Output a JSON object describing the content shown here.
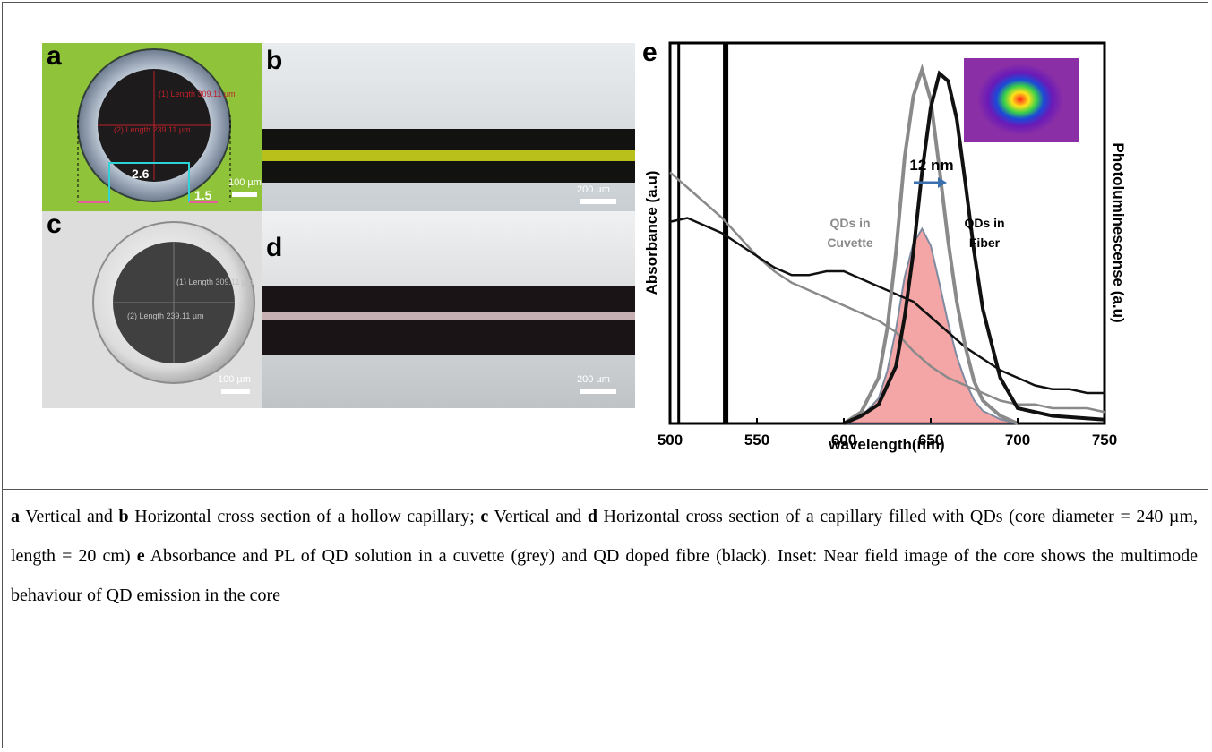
{
  "panels": {
    "a": {
      "label": "a",
      "scale": "100 µm",
      "dim_core": "2.6",
      "dim_wall": "1.5",
      "meas1": "(1) Length 309.11 µm",
      "meas2": "(2) Length 239.11 µm"
    },
    "b": {
      "label": "b",
      "scale": "200 µm"
    },
    "c": {
      "label": "c",
      "scale": "100 µm",
      "meas1": "(1) Length 309.11 µm",
      "meas2": "(2) Length 239.11 µm"
    },
    "d": {
      "label": "d",
      "scale": "200 µm"
    },
    "e": {
      "label": "e"
    }
  },
  "colors": {
    "panel_a_bg": "#8fc33a",
    "fiber_yellow": "#d7df1e",
    "pl_fill": "#f08080",
    "grey_curve": "#8a8a8a"
  },
  "chart_data": {
    "type": "line",
    "xlabel": "wavelength(nm)",
    "ylabel_left": "Absorbance (a.u)",
    "ylabel_right": "Photoluminescense (a.u)",
    "xlim": [
      500,
      750
    ],
    "xticks": [
      500,
      550,
      600,
      650,
      700,
      750
    ],
    "annotation_shift": "12 nm",
    "series": [
      {
        "name": "QDs in Cuvette",
        "color": "#8a8a8a",
        "kind": "absorbance",
        "x": [
          500,
          510,
          520,
          530,
          540,
          550,
          560,
          570,
          580,
          590,
          600,
          610,
          620,
          630,
          640,
          650,
          660,
          670,
          680,
          690,
          700,
          710,
          720,
          730,
          740,
          750
        ],
        "y": [
          0.66,
          0.62,
          0.58,
          0.54,
          0.49,
          0.44,
          0.4,
          0.37,
          0.35,
          0.33,
          0.31,
          0.29,
          0.27,
          0.24,
          0.19,
          0.15,
          0.12,
          0.1,
          0.08,
          0.06,
          0.05,
          0.05,
          0.04,
          0.04,
          0.04,
          0.03
        ]
      },
      {
        "name": "QDs in Fiber",
        "color": "#111111",
        "kind": "absorbance",
        "x": [
          500,
          510,
          520,
          530,
          540,
          550,
          560,
          570,
          580,
          590,
          600,
          610,
          620,
          630,
          640,
          650,
          660,
          670,
          680,
          690,
          700,
          710,
          720,
          730,
          740,
          750
        ],
        "y": [
          0.53,
          0.54,
          0.52,
          0.5,
          0.47,
          0.44,
          0.41,
          0.39,
          0.39,
          0.4,
          0.4,
          0.38,
          0.36,
          0.34,
          0.32,
          0.28,
          0.24,
          0.2,
          0.17,
          0.14,
          0.12,
          0.1,
          0.09,
          0.09,
          0.08,
          0.08
        ]
      },
      {
        "name": "QDs in Cuvette",
        "color": "#8a8a8a",
        "kind": "photoluminescence",
        "x": [
          600,
          610,
          620,
          625,
          630,
          635,
          640,
          645,
          650,
          655,
          660,
          665,
          670,
          675,
          680,
          690,
          700
        ],
        "y": [
          0.0,
          0.03,
          0.12,
          0.25,
          0.45,
          0.7,
          0.86,
          0.93,
          0.85,
          0.67,
          0.48,
          0.32,
          0.2,
          0.11,
          0.06,
          0.02,
          0.0
        ]
      },
      {
        "name": "QDs in Fiber",
        "color": "#111111",
        "kind": "photoluminescence",
        "x": [
          600,
          610,
          620,
          630,
          635,
          640,
          645,
          650,
          655,
          660,
          665,
          670,
          675,
          680,
          690,
          700,
          720,
          750
        ],
        "y": [
          0.0,
          0.02,
          0.05,
          0.15,
          0.28,
          0.45,
          0.66,
          0.83,
          0.92,
          0.9,
          0.8,
          0.63,
          0.45,
          0.3,
          0.12,
          0.04,
          0.02,
          0.01
        ]
      }
    ],
    "laser_lines": [
      505,
      532
    ],
    "legend": [
      "QDs in Cuvette",
      "QDs in Fiber"
    ]
  },
  "caption": {
    "a_label": "a",
    "a_text": " Vertical and ",
    "b_label": "b",
    "b_text": " Horizontal cross section of a hollow capillary; ",
    "c_label": "c",
    "c_text": " Vertical and ",
    "d_label": "d",
    "d_text": " Horizontal cross section of a capillary filled with QDs (core diameter = 240 µm, length = 20 cm) ",
    "e_label": "e",
    "e_text": " Absorbance and PL of QD solution in a cuvette (grey) and QD doped fibre (black). Inset: Near field image of the core shows the multimode behaviour of QD emission in the core"
  }
}
